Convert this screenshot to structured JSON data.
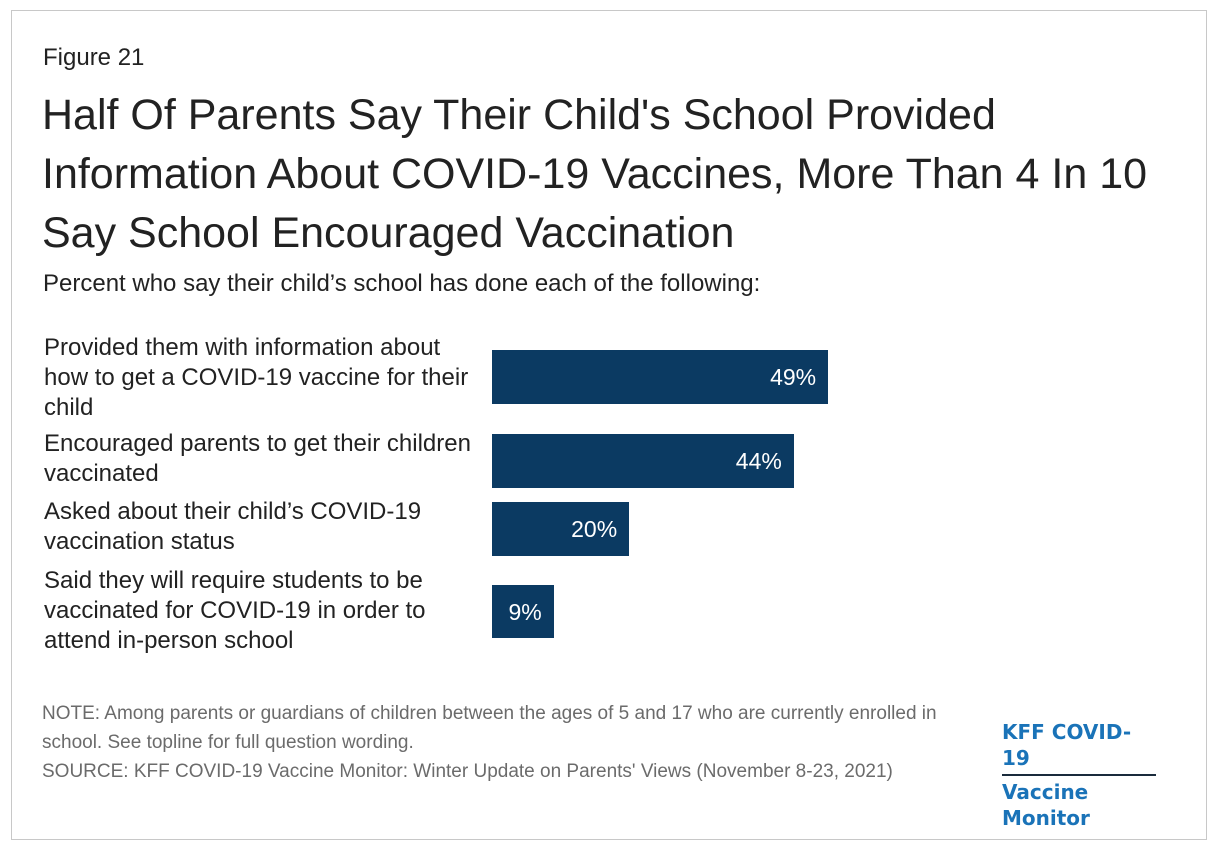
{
  "figure_label": "Figure 21",
  "chart_data": {
    "type": "bar",
    "orientation": "horizontal",
    "title": "Half Of Parents Say Their Child's School Provided Information About COVID-19 Vaccines, More Than 4 In 10 Say School Encouraged Vaccination",
    "subtitle": "Percent who say their child’s school has done each of the following:",
    "categories": [
      "Provided them with information about how to get a COVID-19 vaccine for their child",
      "Encouraged parents to get their children vaccinated",
      "Asked about their child’s COVID-19 vaccination status",
      "Said they will require students to be vaccinated for COVID-19 in order to attend in-person school"
    ],
    "values": [
      49,
      44,
      20,
      9
    ],
    "data_labels": [
      "49%",
      "44%",
      "20%",
      "9%"
    ],
    "xlim": [
      0,
      100
    ],
    "grid": false,
    "legend": "none",
    "bar_color": "#0b3a62"
  },
  "notes": {
    "note": "NOTE: Among parents or guardians of children between the ages of 5 and 17 who are currently enrolled in school. See topline for full question wording.",
    "source": "SOURCE: KFF COVID-19 Vaccine Monitor: Winter Update on Parents' Views (November 8-23, 2021)"
  },
  "logo": {
    "line1": "KFF COVID-19",
    "line2": "Vaccine Monitor"
  }
}
